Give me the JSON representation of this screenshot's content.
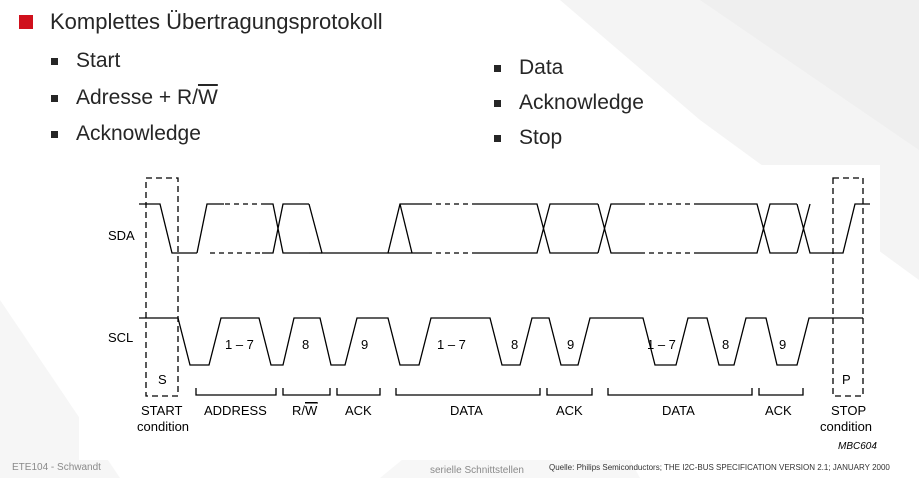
{
  "heading": "Komplettes Übertragungsprotokoll",
  "left_items": [
    {
      "text": "Start"
    },
    {
      "pre": "Adresse + R/",
      "over": "W"
    },
    {
      "text": "Acknowledge"
    }
  ],
  "right_items": [
    "Data",
    "Acknowledge",
    "Stop"
  ],
  "diagram": {
    "sda_label": "SDA",
    "scl_label": "SCL",
    "s_label": "S",
    "p_label": "P",
    "pulse_labels": [
      "1 – 7",
      "8",
      "9",
      "1 – 7",
      "8",
      "9",
      "1 – 7",
      "8",
      "9"
    ],
    "start_line1": "START",
    "start_line2": "condition",
    "address": "ADDRESS",
    "rw_pre": "R/",
    "rw_over": "W",
    "ack": "ACK",
    "data": "DATA",
    "stop_line1": "STOP",
    "stop_line2": "condition",
    "code": "MBC604"
  },
  "footer": {
    "left": "ETE104 - Schwandt",
    "center": "serielle Schnittstellen",
    "source": "Quelle: Philips Semiconductors; THE I2C-BUS SPECIFICATION VERSION 2.1; JANUARY 2000"
  },
  "colors": {
    "accent": "#d0101c",
    "text": "#262626",
    "diagram_line": "#000000"
  }
}
